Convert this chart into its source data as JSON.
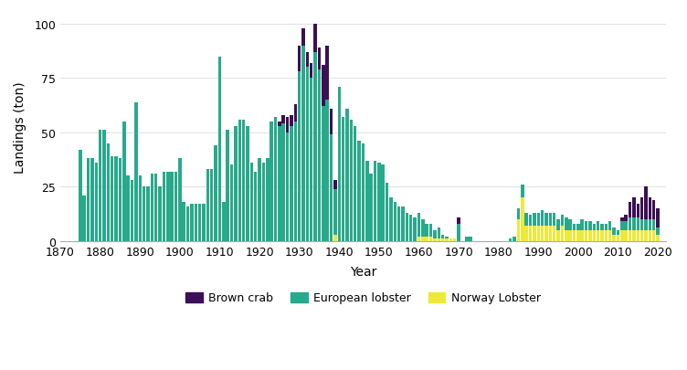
{
  "years": [
    1875,
    1876,
    1877,
    1878,
    1879,
    1880,
    1881,
    1882,
    1883,
    1884,
    1885,
    1886,
    1887,
    1888,
    1889,
    1890,
    1891,
    1892,
    1893,
    1894,
    1895,
    1896,
    1897,
    1898,
    1899,
    1900,
    1901,
    1902,
    1903,
    1904,
    1905,
    1906,
    1907,
    1908,
    1909,
    1910,
    1911,
    1912,
    1913,
    1914,
    1915,
    1916,
    1917,
    1918,
    1919,
    1920,
    1921,
    1922,
    1923,
    1924,
    1925,
    1926,
    1927,
    1928,
    1929,
    1930,
    1931,
    1932,
    1933,
    1934,
    1935,
    1936,
    1937,
    1938,
    1939,
    1940,
    1941,
    1942,
    1943,
    1944,
    1945,
    1946,
    1947,
    1948,
    1949,
    1950,
    1951,
    1952,
    1953,
    1954,
    1955,
    1956,
    1957,
    1958,
    1959,
    1960,
    1961,
    1962,
    1963,
    1964,
    1965,
    1966,
    1967,
    1968,
    1969,
    1970,
    1971,
    1972,
    1973,
    1974,
    1975,
    1976,
    1977,
    1978,
    1979,
    1980,
    1981,
    1982,
    1983,
    1984,
    1985,
    1986,
    1987,
    1988,
    1989,
    1990,
    1991,
    1992,
    1993,
    1994,
    1995,
    1996,
    1997,
    1998,
    1999,
    2000,
    2001,
    2002,
    2003,
    2004,
    2005,
    2006,
    2007,
    2008,
    2009,
    2010,
    2011,
    2012,
    2013,
    2014,
    2015,
    2016,
    2017,
    2018,
    2019,
    2020
  ],
  "brown_crab": [
    0,
    0,
    0,
    0,
    0,
    0,
    0,
    0,
    0,
    0,
    0,
    0,
    0,
    0,
    0,
    0,
    0,
    0,
    0,
    0,
    0,
    0,
    0,
    0,
    0,
    0,
    0,
    0,
    0,
    0,
    0,
    0,
    0,
    0,
    0,
    0,
    0,
    0,
    0,
    0,
    0,
    0,
    0,
    0,
    0,
    0,
    0,
    0,
    0,
    0,
    2,
    4,
    7,
    5,
    8,
    12,
    8,
    7,
    7,
    13,
    10,
    19,
    25,
    12,
    4,
    0,
    0,
    0,
    0,
    0,
    0,
    0,
    0,
    0,
    0,
    0,
    0,
    0,
    0,
    0,
    0,
    0,
    0,
    0,
    0,
    0,
    0,
    0,
    0,
    0,
    0,
    0,
    0,
    0,
    0,
    3,
    0,
    0,
    0,
    0,
    0,
    0,
    0,
    0,
    0,
    0,
    0,
    0,
    0,
    0,
    0,
    0,
    0,
    0,
    0,
    0,
    0,
    0,
    0,
    0,
    0,
    0,
    0,
    0,
    0,
    0,
    0,
    0,
    0,
    0,
    0,
    0,
    0,
    0,
    0,
    0,
    2,
    3,
    7,
    9,
    6,
    10,
    15,
    10,
    9,
    9
  ],
  "european_lobster": [
    42,
    21,
    38,
    38,
    36,
    51,
    51,
    45,
    39,
    39,
    38,
    55,
    30,
    28,
    64,
    30,
    25,
    25,
    31,
    31,
    25,
    32,
    32,
    32,
    32,
    38,
    18,
    16,
    17,
    17,
    17,
    17,
    33,
    33,
    44,
    85,
    18,
    51,
    35,
    53,
    56,
    56,
    53,
    36,
    32,
    38,
    36,
    38,
    55,
    57,
    53,
    54,
    50,
    53,
    55,
    78,
    90,
    80,
    75,
    87,
    79,
    62,
    65,
    49,
    21,
    71,
    57,
    61,
    56,
    53,
    46,
    45,
    37,
    31,
    37,
    36,
    35,
    27,
    20,
    18,
    16,
    16,
    13,
    12,
    11,
    11,
    8,
    6,
    6,
    4,
    5,
    2,
    1,
    0,
    0,
    8,
    0,
    2,
    2,
    0,
    0,
    0,
    0,
    0,
    0,
    0,
    0,
    0,
    1,
    2,
    5,
    6,
    6,
    5,
    6,
    6,
    7,
    6,
    6,
    6,
    5,
    5,
    6,
    5,
    3,
    3,
    5,
    4,
    4,
    3,
    4,
    3,
    3,
    4,
    3,
    2,
    4,
    4,
    6,
    6,
    6,
    5,
    5,
    5,
    5,
    3
  ],
  "norway_lobster": [
    0,
    0,
    0,
    0,
    0,
    0,
    0,
    0,
    0,
    0,
    0,
    0,
    0,
    0,
    0,
    0,
    0,
    0,
    0,
    0,
    0,
    0,
    0,
    0,
    0,
    0,
    0,
    0,
    0,
    0,
    0,
    0,
    0,
    0,
    0,
    0,
    0,
    0,
    0,
    0,
    0,
    0,
    0,
    0,
    0,
    0,
    0,
    0,
    0,
    0,
    0,
    0,
    0,
    0,
    0,
    0,
    0,
    0,
    0,
    0,
    0,
    0,
    0,
    0,
    3,
    0,
    0,
    0,
    0,
    0,
    0,
    0,
    0,
    0,
    0,
    0,
    0,
    0,
    0,
    0,
    0,
    0,
    0,
    0,
    0,
    2,
    2,
    2,
    2,
    1,
    1,
    1,
    1,
    1,
    1,
    0,
    0,
    0,
    0,
    0,
    0,
    0,
    0,
    0,
    0,
    0,
    0,
    0,
    0,
    0,
    10,
    20,
    7,
    7,
    7,
    7,
    7,
    7,
    7,
    7,
    5,
    7,
    5,
    5,
    5,
    5,
    5,
    5,
    5,
    5,
    5,
    5,
    5,
    5,
    3,
    3,
    5,
    5,
    5,
    5,
    5,
    5,
    5,
    5,
    5,
    3
  ],
  "colors": {
    "brown_crab": "#3b1055",
    "european_lobster": "#29a98b",
    "norway_lobster": "#ede93a"
  },
  "xlabel": "Year",
  "ylabel": "Landings (ton)",
  "ylim": [
    0,
    105
  ],
  "xlim": [
    1870,
    2022
  ],
  "yticks": [
    0,
    25,
    50,
    75,
    100
  ],
  "xticks": [
    1870,
    1880,
    1890,
    1900,
    1910,
    1920,
    1930,
    1940,
    1950,
    1960,
    1970,
    1980,
    1990,
    2000,
    2010,
    2020
  ],
  "legend_labels": [
    "Brown crab",
    "European lobster",
    "Norway Lobster"
  ],
  "background_color": "#ffffff",
  "bar_width": 0.8
}
